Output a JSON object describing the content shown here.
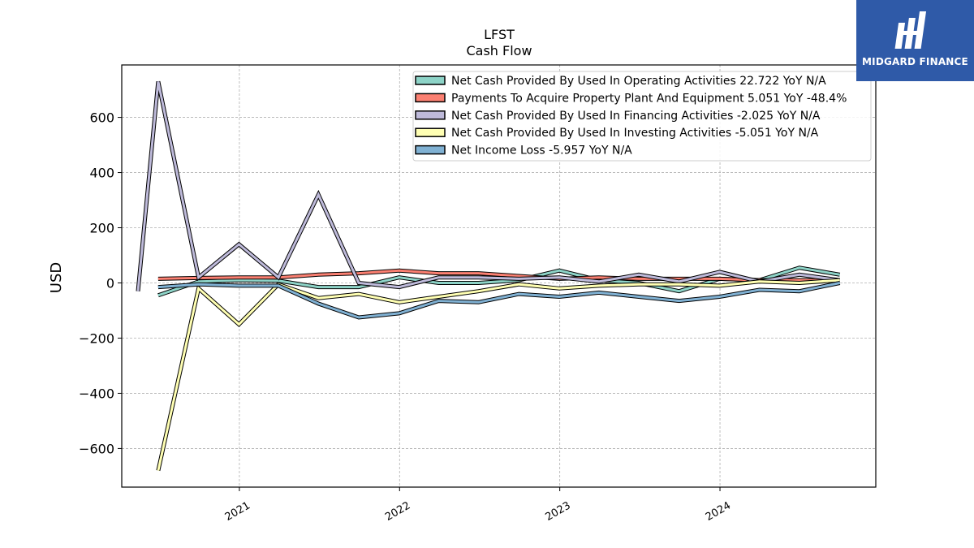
{
  "logo": {
    "text": "MIDGARD FINANCE"
  },
  "chart_data": {
    "type": "line",
    "title": "LFST",
    "subtitle": "Cash Flow",
    "ylabel": "USD",
    "xlabel": "",
    "ylim": [
      -740,
      790
    ],
    "xlim": [
      "2020-04-08",
      "2024-12-21"
    ],
    "grid": true,
    "legend_position": "top-right",
    "yticks": [
      600,
      400,
      200,
      0,
      -200,
      -400,
      -600
    ],
    "ytick_labels": [
      "600",
      "400",
      "200",
      "0",
      "−200",
      "−400",
      "−600"
    ],
    "xticks": [
      "2021-01-01",
      "2022-01-01",
      "2023-01-01",
      "2024-01-01"
    ],
    "xtick_labels": [
      "2021",
      "2022",
      "2023",
      "2024"
    ],
    "x": [
      "2020-05-15",
      "2020-06-30",
      "2020-09-30",
      "2020-12-31",
      "2021-03-31",
      "2021-06-30",
      "2021-09-30",
      "2021-12-31",
      "2022-03-31",
      "2022-06-30",
      "2022-09-30",
      "2022-12-31",
      "2023-03-31",
      "2023-06-30",
      "2023-09-30",
      "2023-12-31",
      "2024-03-31",
      "2024-06-30",
      "2024-09-30"
    ],
    "series": [
      {
        "name": "Net Cash Provided By Used In Operating Activities  22.722 YoY N/A",
        "color": "#8dd3c7",
        "values": [
          null,
          -45,
          5,
          10,
          8,
          -15,
          -15,
          20,
          0,
          0,
          10,
          45,
          10,
          0,
          -30,
          15,
          10,
          55,
          30
        ]
      },
      {
        "name": "Payments To Acquire Property Plant And Equipment  5.051 YoY -48.4%",
        "color": "#fb8072",
        "values": [
          null,
          15,
          18,
          20,
          20,
          30,
          35,
          45,
          35,
          35,
          25,
          15,
          20,
          15,
          15,
          15,
          10,
          10,
          10
        ]
      },
      {
        "name": "Net Cash Provided By Used In Financing Activities  -2.025 YoY N/A",
        "color": "#bebada",
        "values": [
          -30,
          730,
          20,
          140,
          20,
          320,
          0,
          -15,
          20,
          20,
          15,
          20,
          5,
          30,
          5,
          40,
          5,
          30,
          10
        ]
      },
      {
        "name": "Net Cash Provided By Used In Investing Activities  -5.051 YoY N/A",
        "color": "#ffffb3",
        "values": [
          null,
          -680,
          -20,
          -150,
          -5,
          -55,
          -40,
          -70,
          -50,
          -30,
          -5,
          -20,
          -10,
          -5,
          -5,
          -10,
          5,
          0,
          10
        ]
      },
      {
        "name": "Net Income Loss  -5.957 YoY N/A",
        "color": "#80b1d3",
        "values": [
          null,
          -15,
          -5,
          -10,
          -10,
          -75,
          -125,
          -110,
          -65,
          -70,
          -40,
          -50,
          -35,
          -50,
          -65,
          -50,
          -25,
          -30,
          0
        ]
      }
    ]
  }
}
